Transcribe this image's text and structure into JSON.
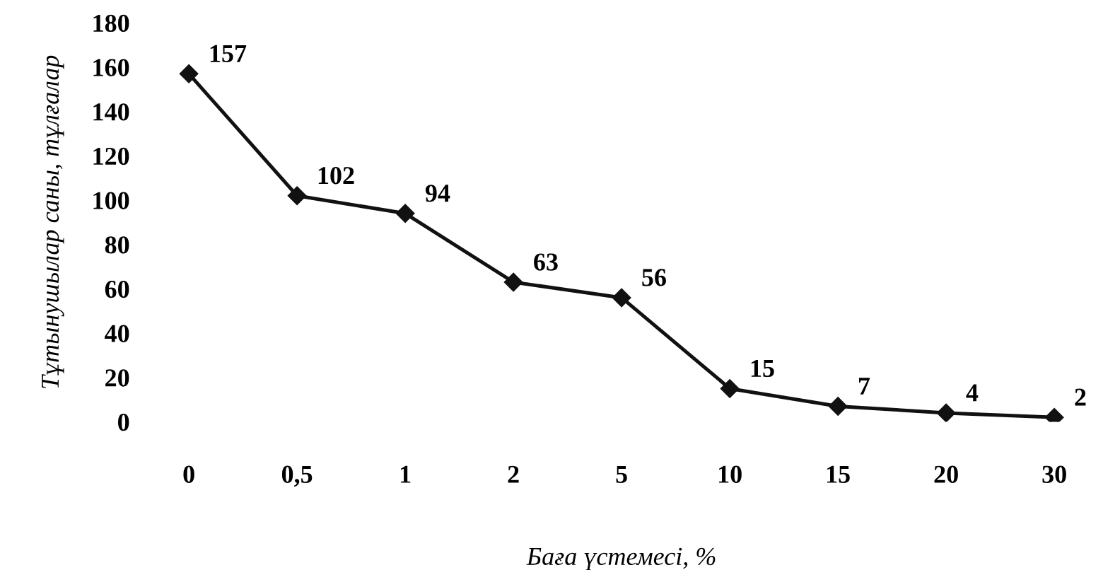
{
  "chart_data": {
    "type": "line",
    "xlabel": "Баға үстемесі, %",
    "ylabel": "Тұтынушылар саны, тұлғалар",
    "categories": [
      "0",
      "0,5",
      "1",
      "2",
      "5",
      "10",
      "15",
      "20",
      "30"
    ],
    "values": [
      157,
      102,
      94,
      63,
      56,
      15,
      7,
      4,
      2
    ],
    "color": "#111111",
    "marker": "diamond",
    "line_style": "solid",
    "data_labels": true,
    "grid": false,
    "ylim": [
      0,
      180
    ],
    "yticks": [
      0,
      20,
      40,
      60,
      80,
      100,
      120,
      140,
      160,
      180
    ]
  }
}
